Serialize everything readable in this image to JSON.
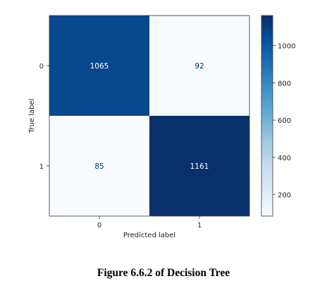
{
  "caption": "Figure 6.6.2 of Decision Tree",
  "chart_data": {
    "type": "heatmap",
    "title": "",
    "xlabel": "Predicted label",
    "ylabel": "True label",
    "x_categories": [
      "0",
      "1"
    ],
    "y_categories": [
      "0",
      "1"
    ],
    "matrix": [
      [
        1065,
        92
      ],
      [
        85,
        1161
      ]
    ],
    "colormap": "Blues",
    "colorbar": {
      "min": 85,
      "max": 1161,
      "ticks": [
        200,
        400,
        600,
        800,
        1000
      ],
      "tick_labels": [
        "200",
        "400",
        "600",
        "800",
        "1000"
      ]
    },
    "grid": false
  }
}
